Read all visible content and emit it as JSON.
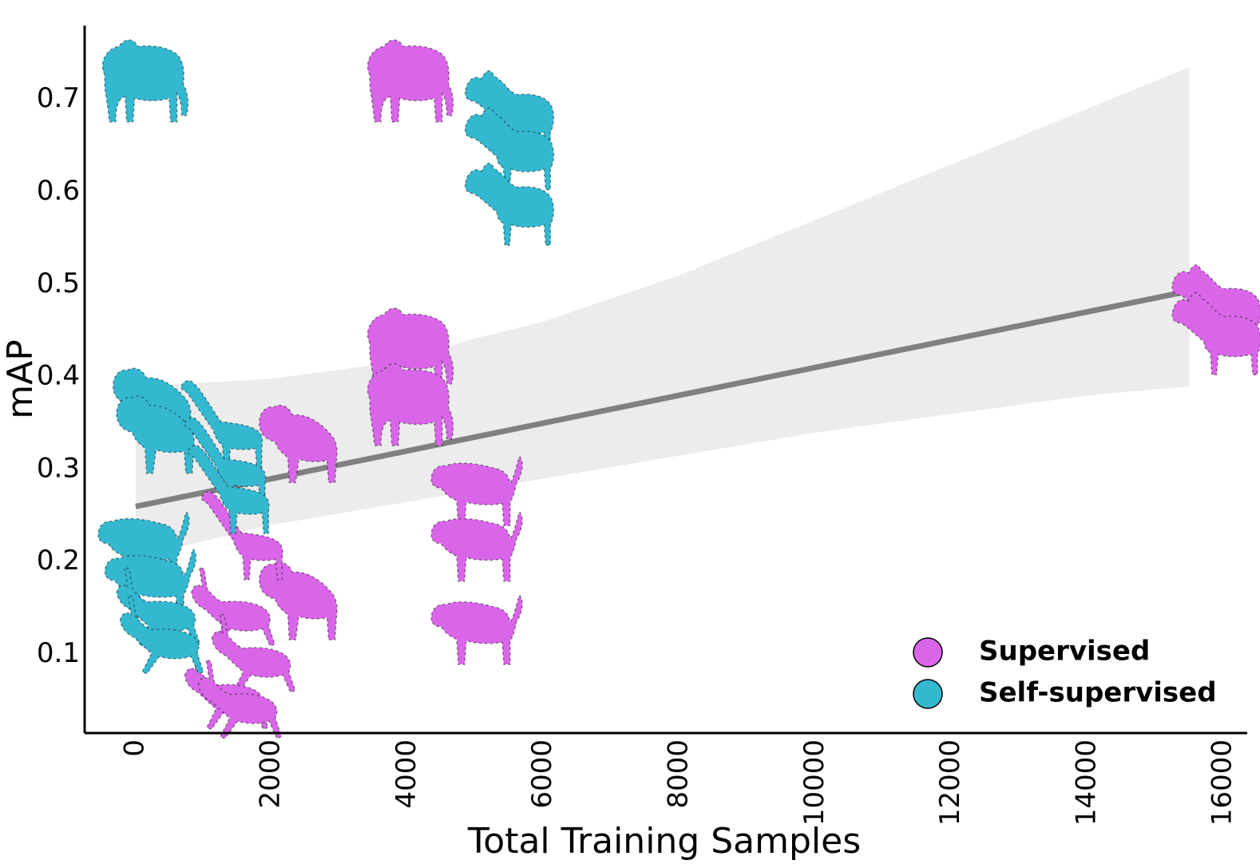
{
  "chart_data": {
    "type": "scatter",
    "xlabel": "Total Training Samples",
    "ylabel": "mAP",
    "xlim": [
      -750,
      16350
    ],
    "ylim": [
      0.015,
      0.78
    ],
    "x_ticks": [
      0,
      2000,
      4000,
      6000,
      8000,
      10000,
      12000,
      14000,
      16000
    ],
    "y_ticks": [
      0.1,
      0.2,
      0.3,
      0.4,
      0.5,
      0.6,
      0.7
    ],
    "x_tick_labels": [
      "0",
      "2000",
      "4000",
      "6000",
      "8000",
      "10000",
      "12000",
      "14000",
      "16000"
    ],
    "y_tick_labels": [
      "0.1",
      "0.2",
      "0.3",
      "0.4",
      "0.5",
      "0.6",
      "0.7"
    ],
    "grid": false,
    "legend_position": "bottom-right",
    "series": [
      {
        "name": "Supervised",
        "color": "#d966e8",
        "points": [
          {
            "animal": "tiger",
            "x": 4000,
            "y": 0.72
          },
          {
            "animal": "tiger",
            "x": 4000,
            "y": 0.43
          },
          {
            "animal": "tiger",
            "x": 4000,
            "y": 0.37
          },
          {
            "animal": "zebra",
            "x": 15900,
            "y": 0.48
          },
          {
            "animal": "zebra",
            "x": 15900,
            "y": 0.45
          },
          {
            "animal": "hyena",
            "x": 2400,
            "y": 0.33
          },
          {
            "animal": "hyena",
            "x": 2400,
            "y": 0.16
          },
          {
            "animal": "leopard",
            "x": 5000,
            "y": 0.28
          },
          {
            "animal": "leopard",
            "x": 5000,
            "y": 0.22
          },
          {
            "animal": "leopard",
            "x": 5000,
            "y": 0.13
          },
          {
            "animal": "giraffe",
            "x": 1600,
            "y": 0.23
          },
          {
            "animal": "gazelle",
            "x": 1400,
            "y": 0.15
          },
          {
            "animal": "gazelle",
            "x": 1700,
            "y": 0.1
          },
          {
            "animal": "gazelle",
            "x": 1300,
            "y": 0.06
          },
          {
            "animal": "gazelle",
            "x": 1500,
            "y": 0.05
          }
        ]
      },
      {
        "name": "Self-supervised",
        "color": "#33b8d0",
        "points": [
          {
            "animal": "tiger",
            "x": 100,
            "y": 0.72
          },
          {
            "animal": "zebra",
            "x": 5500,
            "y": 0.69
          },
          {
            "animal": "zebra",
            "x": 5500,
            "y": 0.65
          },
          {
            "animal": "zebra",
            "x": 5500,
            "y": 0.59
          },
          {
            "animal": "hyena",
            "x": 250,
            "y": 0.37
          },
          {
            "animal": "hyena",
            "x": 300,
            "y": 0.34
          },
          {
            "animal": "giraffe",
            "x": 1300,
            "y": 0.35
          },
          {
            "animal": "giraffe",
            "x": 1350,
            "y": 0.31
          },
          {
            "animal": "giraffe",
            "x": 1400,
            "y": 0.28
          },
          {
            "animal": "leopard",
            "x": 100,
            "y": 0.22
          },
          {
            "animal": "leopard",
            "x": 200,
            "y": 0.18
          },
          {
            "animal": "gazelle",
            "x": 300,
            "y": 0.15
          },
          {
            "animal": "gazelle",
            "x": 350,
            "y": 0.12
          }
        ]
      }
    ],
    "regression": {
      "color": "#808080",
      "band_color": "#ececec",
      "line": [
        [
          0,
          0.26
        ],
        [
          15500,
          0.493
        ]
      ],
      "band_upper": [
        [
          0,
          0.39
        ],
        [
          2000,
          0.398
        ],
        [
          4000,
          0.418
        ],
        [
          4900,
          0.44
        ],
        [
          6000,
          0.46
        ],
        [
          8000,
          0.51
        ],
        [
          10000,
          0.57
        ],
        [
          12000,
          0.63
        ],
        [
          14000,
          0.69
        ],
        [
          15500,
          0.735
        ]
      ],
      "band_lower": [
        [
          0,
          0.205
        ],
        [
          2000,
          0.24
        ],
        [
          4000,
          0.265
        ],
        [
          6000,
          0.29
        ],
        [
          8000,
          0.315
        ],
        [
          10000,
          0.34
        ],
        [
          12000,
          0.36
        ],
        [
          14000,
          0.38
        ],
        [
          15500,
          0.39
        ]
      ]
    }
  }
}
